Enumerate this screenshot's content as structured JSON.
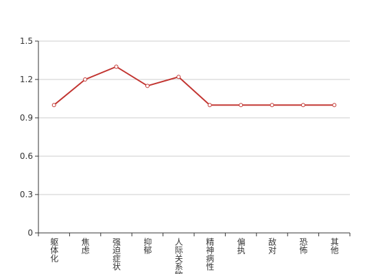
{
  "chart_data": {
    "type": "line",
    "categories": [
      "躯体化",
      "焦虑",
      "强迫症状",
      "抑郁",
      "人际关系敏感",
      "精神病性",
      "偏执",
      "敌对",
      "恐怖",
      "其他"
    ],
    "series": [
      {
        "name": null,
        "color": "#c23531",
        "values": [
          1.0,
          1.2,
          1.3,
          1.15,
          1.22,
          1.0,
          1.0,
          1.0,
          1.0,
          1.0
        ]
      }
    ],
    "ylim": [
      0,
      1.5
    ],
    "yticks": [
      0,
      0.3,
      0.6,
      0.9,
      1.2,
      1.5
    ],
    "grid": true
  }
}
